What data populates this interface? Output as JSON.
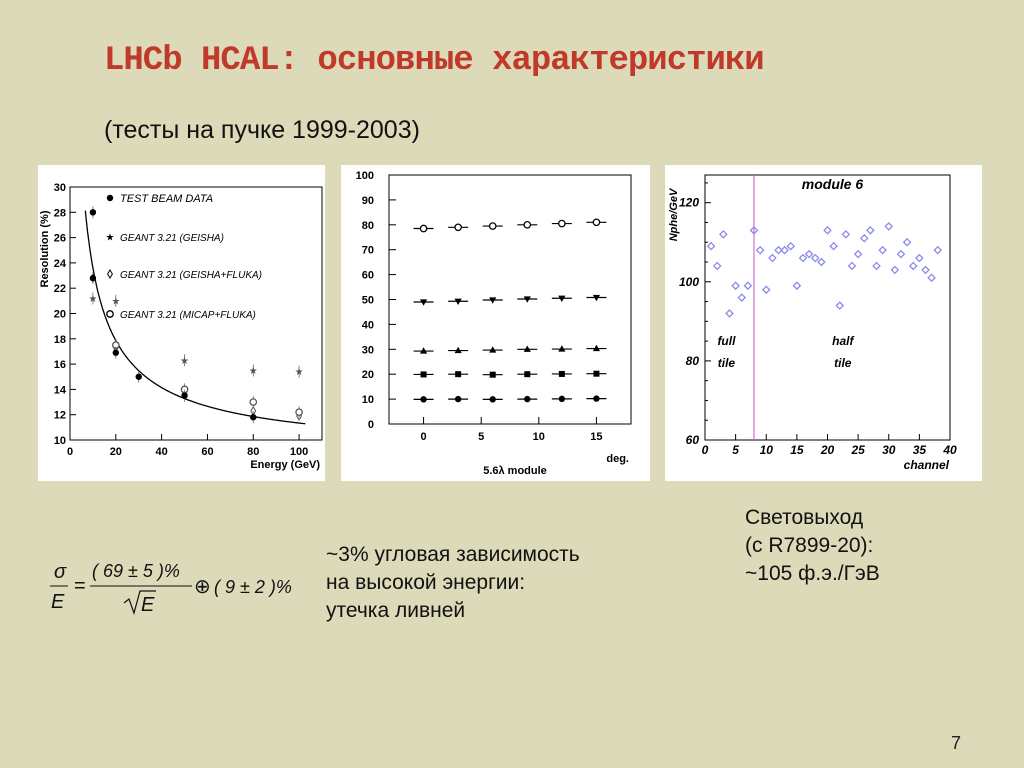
{
  "slide": {
    "title": "LHCb HCAL: основные характеристики",
    "subtitle": "(тесты на пучке 1999-2003)",
    "angular_text": [
      "~3% угловая зависимость",
      "на высокой энергии:",
      "утечка ливней"
    ],
    "light_text": [
      "Световыход",
      "(с R7899-20):",
      "~105 ф.э./ГэВ"
    ],
    "formula": {
      "lhs_num": "σ",
      "lhs_den": "E",
      "eq": "=",
      "num": "( 69 ± 5 )%",
      "den_root": "E",
      "oplus": "⊕",
      "tail": "( 9 ± 2 )%"
    },
    "page_number": "7"
  },
  "chart_data": [
    {
      "type": "scatter",
      "xlabel": "Energy  (GeV)",
      "ylabel": "Resolution  (%)",
      "xlim": [
        0,
        110
      ],
      "ylim": [
        10,
        30
      ],
      "x_ticks": [
        0,
        20,
        40,
        60,
        80,
        100
      ],
      "y_ticks": [
        10,
        12,
        14,
        16,
        18,
        20,
        22,
        24,
        26,
        28,
        30
      ],
      "legend_position": "top-right",
      "series": [
        {
          "name": "TEST BEAM DATA",
          "marker": "filled-circle",
          "x": [
            10,
            10,
            20,
            30,
            50,
            80
          ],
          "y": [
            28.0,
            22.8,
            16.9,
            15.0,
            13.5,
            11.8
          ]
        },
        {
          "name": "GEANT 3.21 (GEISHA)",
          "marker": "star",
          "x": [
            10,
            20,
            50,
            80,
            100
          ],
          "y": [
            21.2,
            21.0,
            16.3,
            15.5,
            15.4
          ]
        },
        {
          "name": "GEANT 3.21 (GEISHA+FLUKA)",
          "marker": "diamond",
          "x": [
            10,
            20,
            50,
            80,
            100
          ],
          "y": [
            22.8,
            17.3,
            13.7,
            12.3,
            11.9
          ]
        },
        {
          "name": "GEANT 3.21 (MICAP+FLUKA)",
          "marker": "open-circle",
          "x": [
            20,
            50,
            80,
            100
          ],
          "y": [
            17.5,
            14.0,
            13.0,
            12.2
          ]
        }
      ],
      "fit": {
        "stochastic_percent": 69,
        "constant_percent": 9
      }
    },
    {
      "type": "scatter",
      "xlabel": "5.6λ module",
      "xunit": "deg.",
      "xlim": [
        -3,
        18
      ],
      "ylim": [
        0,
        100
      ],
      "x_ticks": [
        0,
        5,
        10,
        15
      ],
      "y_ticks": [
        0,
        10,
        20,
        30,
        40,
        50,
        60,
        70,
        80,
        90,
        100
      ],
      "x": [
        0,
        3,
        6,
        9,
        12,
        15
      ],
      "series": [
        {
          "marker": "open-circle",
          "values": [
            78.5,
            79.0,
            79.5,
            80.0,
            80.5,
            81.0
          ]
        },
        {
          "marker": "filled-triangle-down",
          "values": [
            49.0,
            49.3,
            49.8,
            50.2,
            50.5,
            50.8
          ]
        },
        {
          "marker": "filled-triangle-up",
          "values": [
            29.3,
            29.5,
            29.7,
            30.0,
            30.1,
            30.3
          ]
        },
        {
          "marker": "filled-square",
          "values": [
            19.9,
            20.0,
            19.8,
            20.0,
            20.1,
            20.2
          ]
        },
        {
          "marker": "filled-circle",
          "values": [
            9.9,
            10.0,
            9.9,
            10.0,
            10.1,
            10.2
          ]
        }
      ]
    },
    {
      "type": "scatter",
      "title": "module 6",
      "xlabel": "channel",
      "ylabel": "Nphe/GeV",
      "xlim": [
        0,
        40
      ],
      "ylim": [
        60,
        127
      ],
      "x_ticks": [
        0,
        5,
        10,
        15,
        20,
        25,
        30,
        35,
        40
      ],
      "y_ticks": [
        60,
        80,
        100,
        120
      ],
      "annotations": [
        "full",
        "tile",
        "half",
        "tile"
      ],
      "divider_x": 8,
      "x": [
        1,
        2,
        3,
        4,
        5,
        6,
        7,
        8,
        9,
        10,
        11,
        12,
        13,
        14,
        15,
        16,
        17,
        18,
        19,
        20,
        21,
        22,
        23,
        24,
        25,
        26,
        27,
        28,
        29,
        30,
        31,
        32,
        33,
        34,
        35,
        36,
        37,
        38
      ],
      "values": [
        109,
        104,
        112,
        92,
        99,
        96,
        99,
        113,
        108,
        98,
        106,
        108,
        108,
        109,
        99,
        106,
        107,
        106,
        105,
        113,
        109,
        94,
        112,
        104,
        107,
        111,
        113,
        104,
        108,
        114,
        103,
        107,
        110,
        104,
        106,
        103,
        101,
        108
      ]
    }
  ]
}
